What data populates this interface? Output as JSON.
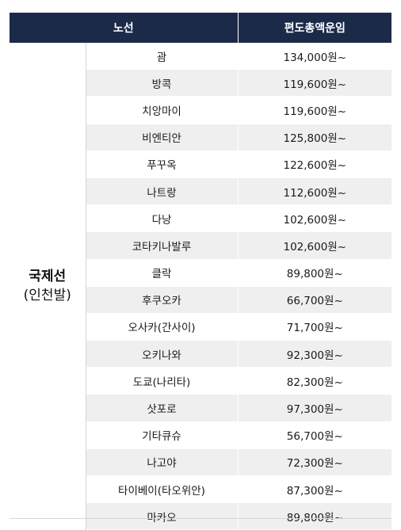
{
  "header": {
    "route": "노선",
    "fare": "편도총액운임"
  },
  "region": {
    "name": "국제선",
    "sub": "(인천발)"
  },
  "rows": [
    {
      "route": "괌",
      "fare": "134,000원~"
    },
    {
      "route": "방콕",
      "fare": "119,600원~"
    },
    {
      "route": "치앙마이",
      "fare": "119,600원~"
    },
    {
      "route": "비엔티안",
      "fare": "125,800원~"
    },
    {
      "route": "푸꾸옥",
      "fare": "122,600원~"
    },
    {
      "route": "나트랑",
      "fare": "112,600원~"
    },
    {
      "route": "다낭",
      "fare": "102,600원~"
    },
    {
      "route": "코타키나발루",
      "fare": "102,600원~"
    },
    {
      "route": "클락",
      "fare": "89,800원~"
    },
    {
      "route": "후쿠오카",
      "fare": "66,700원~"
    },
    {
      "route": "오사카(간사이)",
      "fare": "71,700원~"
    },
    {
      "route": "오키나와",
      "fare": "92,300원~"
    },
    {
      "route": "도쿄(나리타)",
      "fare": "82,300원~"
    },
    {
      "route": "삿포로",
      "fare": "97,300원~"
    },
    {
      "route": "기타큐슈",
      "fare": "56,700원~"
    },
    {
      "route": "나고야",
      "fare": "72,300원~"
    },
    {
      "route": "타이베이(타오위안)",
      "fare": "87,300원~"
    },
    {
      "route": "마카오",
      "fare": "89,800원~"
    }
  ]
}
